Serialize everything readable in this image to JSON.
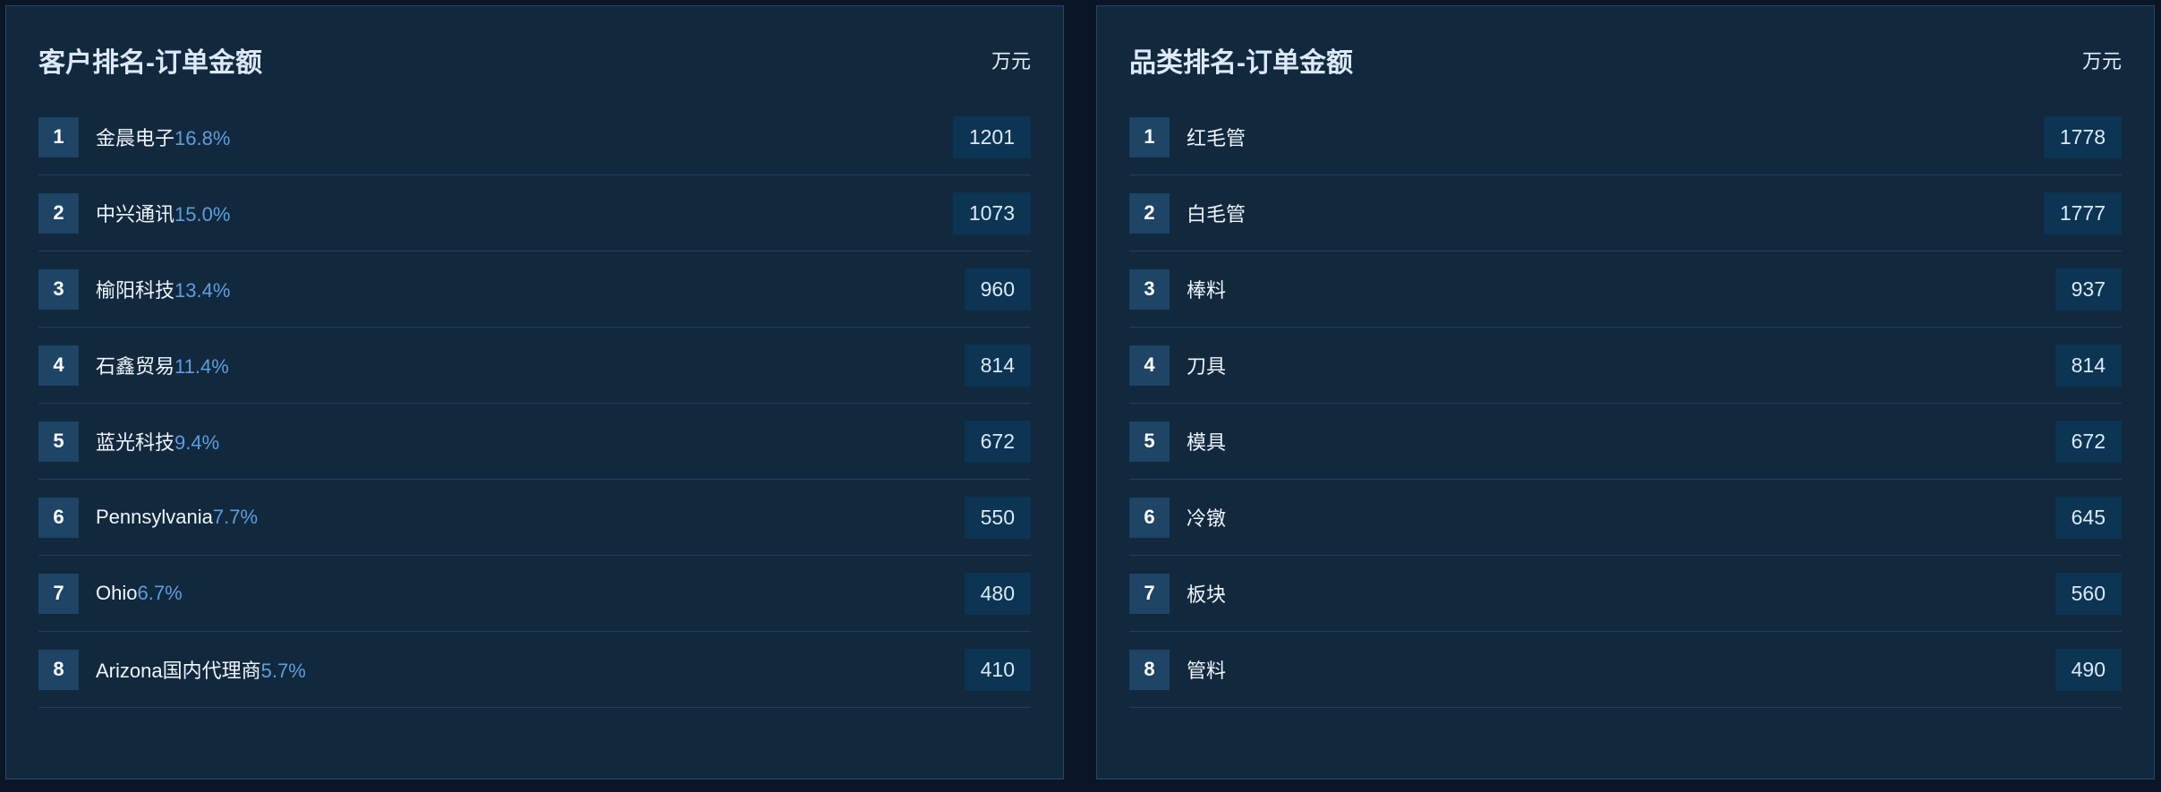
{
  "panels": [
    {
      "title": "客户排名-订单金额",
      "unit": "万元",
      "items": [
        {
          "rank": "1",
          "name": "金晨电子",
          "pct": "16.8%",
          "value": "1201"
        },
        {
          "rank": "2",
          "name": "中兴通讯",
          "pct": "15.0%",
          "value": "1073"
        },
        {
          "rank": "3",
          "name": "榆阳科技",
          "pct": "13.4%",
          "value": "960"
        },
        {
          "rank": "4",
          "name": "石鑫贸易",
          "pct": "11.4%",
          "value": "814"
        },
        {
          "rank": "5",
          "name": "蓝光科技",
          "pct": "9.4%",
          "value": "672"
        },
        {
          "rank": "6",
          "name": "Pennsylvania",
          "pct": "7.7%",
          "value": "550"
        },
        {
          "rank": "7",
          "name": "Ohio",
          "pct": "6.7%",
          "value": "480"
        },
        {
          "rank": "8",
          "name": "Arizona国内代理商",
          "pct": "5.7%",
          "value": "410"
        }
      ]
    },
    {
      "title": "品类排名-订单金额",
      "unit": "万元",
      "items": [
        {
          "rank": "1",
          "name": "红毛管",
          "value": "1778"
        },
        {
          "rank": "2",
          "name": "白毛管",
          "value": "1777"
        },
        {
          "rank": "3",
          "name": "棒料",
          "value": "937"
        },
        {
          "rank": "4",
          "name": "刀具",
          "value": "814"
        },
        {
          "rank": "5",
          "name": "模具",
          "value": "672"
        },
        {
          "rank": "6",
          "name": "冷镦",
          "value": "645"
        },
        {
          "rank": "7",
          "name": "板块",
          "value": "560"
        },
        {
          "rank": "8",
          "name": "管料",
          "value": "490"
        }
      ]
    }
  ]
}
